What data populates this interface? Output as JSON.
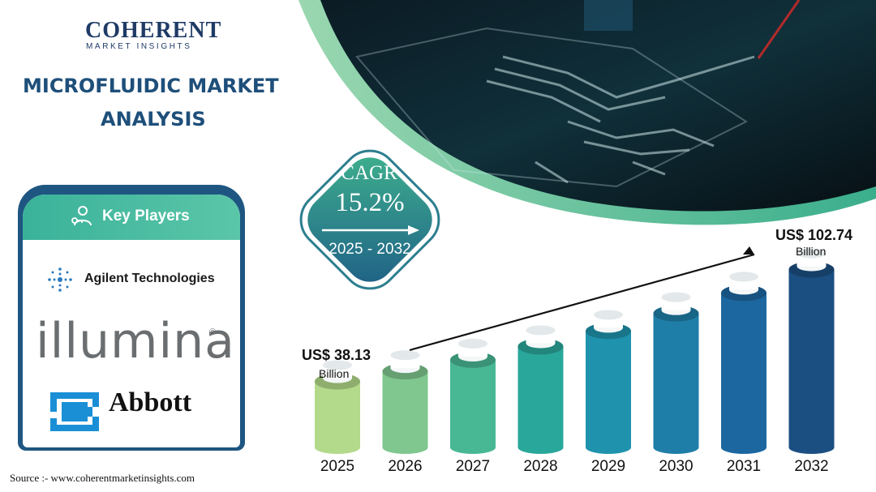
{
  "logo": {
    "name": "COHERENT",
    "tagline": "MARKET INSIGHTS"
  },
  "title": {
    "line1": "MICROFLUIDIC MARKET",
    "line2": "ANALYSIS"
  },
  "key_players": {
    "heading": "Key Players",
    "icon": "key-people-icon",
    "companies": [
      "Agilent Technologies",
      "illumina",
      "Abbott"
    ]
  },
  "cagr": {
    "label": "CAGR",
    "value": "15.2%",
    "period": "2025 - 2032"
  },
  "source": "Source :-  www.coherentmarketinsights.com",
  "colors": {
    "navy": "#1e4f7a",
    "teal": "#3ab29a",
    "bar_gradient": [
      "#b3d98a",
      "#7fc78f",
      "#48b894",
      "#2aa79b",
      "#1f93ad",
      "#1f7ea8",
      "#1d67a0",
      "#1b4f82"
    ]
  },
  "chart_data": {
    "type": "bar",
    "categories": [
      "2025",
      "2026",
      "2027",
      "2028",
      "2029",
      "2030",
      "2031",
      "2032"
    ],
    "values": [
      38.13,
      43.93,
      50.6,
      58.3,
      67.2,
      77.4,
      89.2,
      102.74
    ],
    "annotations": [
      {
        "category": "2025",
        "value_label": "US$ 38.13",
        "unit": "Billion"
      },
      {
        "category": "2032",
        "value_label": "US$ 102.74",
        "unit": "Billion"
      }
    ],
    "ylim": [
      0,
      110
    ],
    "grid": false
  }
}
